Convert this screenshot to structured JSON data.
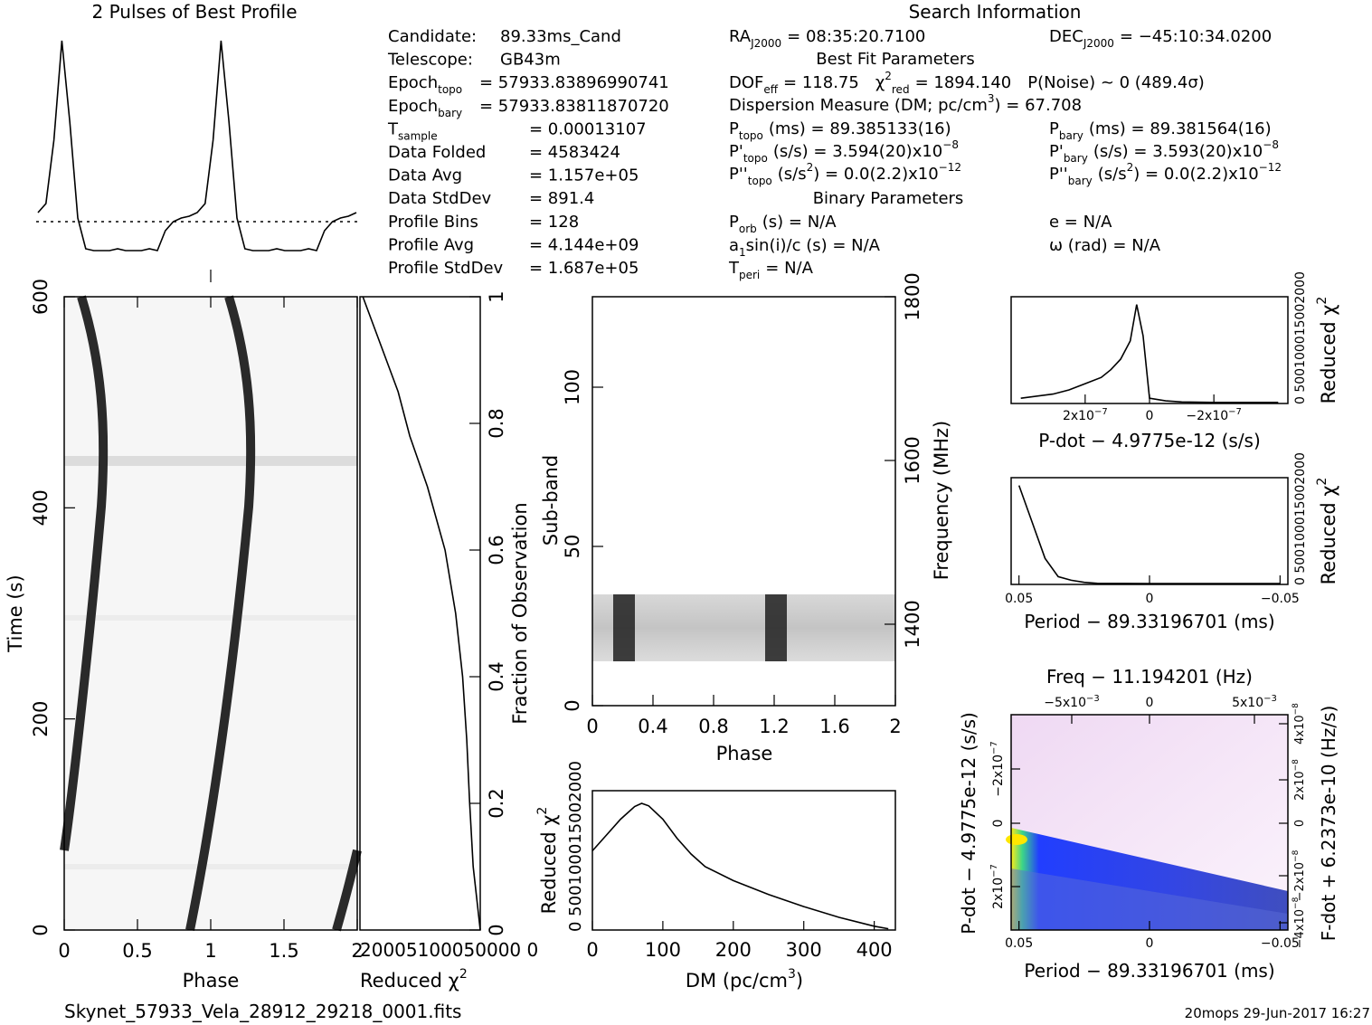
{
  "title_profile": "2 Pulses of Best Profile",
  "title_search": "Search Information",
  "info_left": [
    {
      "label": "Candidate:",
      "value": "89.33ms_Cand"
    },
    {
      "label": "Telescope:",
      "value": "GB43m"
    },
    {
      "label": "Epoch",
      "sub": "topo",
      "value": "= 57933.83896990741"
    },
    {
      "label": "Epoch",
      "sub": "bary",
      "value": "= 57933.83811870720"
    },
    {
      "label": "T",
      "sub": "sample",
      "value": "=   0.00013107"
    },
    {
      "label": "Data Folded",
      "value": "=   4583424"
    },
    {
      "label": "Data Avg",
      "value": "=   1.157e+05"
    },
    {
      "label": "Data StdDev",
      "value": "=   891.4"
    },
    {
      "label": "Profile Bins",
      "value": "=   128"
    },
    {
      "label": "Profile Avg",
      "value": "=   4.144e+09"
    },
    {
      "label": "Profile StdDev",
      "value": "=   1.687e+05"
    }
  ],
  "info_mid": {
    "ra_label": "RA",
    "ra_sub": "J2000",
    "ra_value": "= 08:35:20.7100",
    "dec_label": "DEC",
    "dec_sub": "J2000",
    "dec_value": "= −45:10:34.0200",
    "best_fit_header": "Best Fit Parameters",
    "dof_label": "DOF",
    "dof_sub": "eff",
    "dof_value": "= 118.75",
    "chi_label": "χ",
    "chi_sup": "2",
    "chi_sub": "red",
    "chi_value": "= 1894.140",
    "pnoise": "P(Noise) ~ 0    (489.4σ)",
    "dm_text": "Dispersion Measure (DM; pc/cm",
    "dm_sup": "3",
    "dm_value": ") = 67.708",
    "ptopo_label": "P",
    "ptopo_sub": "topo",
    "ptopo_value": "(ms) =  89.385133(16)",
    "pbary_label": "P",
    "pbary_sub": "bary",
    "pbary_value": "(ms) =  89.381564(16)",
    "pdtopo_label": "P'",
    "pdtopo_sub": "topo",
    "pdtopo_value": "(s/s) =  3.594(20)x10",
    "pdtopo_exp": "−8",
    "pdbary_label": "P'",
    "pdbary_sub": "bary",
    "pdbary_value": "(s/s) =  3.593(20)x10",
    "pdbary_exp": "−8",
    "pddtopo_label": "P''",
    "pddtopo_sub": "topo",
    "pddtopo_value": "(s/s",
    "pddtopo_rest": ") = 0.0(2.2)x10",
    "pddtopo_exp": "−12",
    "pddbary_label": "P''",
    "pddbary_sub": "bary",
    "pddbary_value": "(s/s",
    "pddbary_rest": ") = 0.0(2.2)x10",
    "pddbary_exp": "−12",
    "binary_header": "Binary Parameters",
    "porb": "(s) = N/A",
    "porb_label": "P",
    "porb_sub": "orb",
    "asini_label": "a",
    "asini_sub": "1",
    "asini_value": "sin(i)/c (s) = N/A",
    "tperi_label": "T",
    "tperi_sub": "peri",
    "tperi_value": "= N/A",
    "e_value": "e = N/A",
    "omega_value": "ω (rad) = N/A"
  },
  "time_phase": {
    "ylabel": "Time (s)",
    "xlabel": "Phase",
    "yticks": [
      "0",
      "200",
      "400",
      "600"
    ],
    "xticks": [
      "0",
      "0.5",
      "1",
      "1.5",
      "2"
    ]
  },
  "chi_time": {
    "xlabel": "Reduced χ",
    "xlabel_sup": "2",
    "xticks_label": "20005100050000 0",
    "right_label": "Fraction of Observation",
    "right_ticks": [
      "0",
      "0.2",
      "0.4",
      "0.6",
      "0.8",
      "1"
    ]
  },
  "subband": {
    "ylabel": "Sub-band",
    "xlabel": "Phase",
    "yticks": [
      "0",
      "50",
      "100"
    ],
    "xticks": [
      "0",
      "0.4",
      "0.8",
      "1.2",
      "1.6",
      "2"
    ],
    "right_label": "Frequency (MHz)",
    "right_ticks": [
      "1400",
      "1600",
      "1800"
    ]
  },
  "dm_curve": {
    "ylabel": "Reduced χ",
    "ylabel_sup": "2",
    "ytick_label": "0 500100015002000",
    "xlabel": "DM (pc/cm",
    "xlabel_sup": "3",
    "xlabel_end": ")",
    "xticks": [
      "0",
      "100",
      "200",
      "300",
      "400"
    ]
  },
  "pdot_curve": {
    "xlabel": "P-dot − 4.9775e-12 (s/s)",
    "xticks": [
      "2x10",
      "0",
      "−2x10"
    ],
    "xtick_exp": "−7",
    "right_label": "Reduced χ",
    "right_sup": "2",
    "right_ticks_label": "0 500100015002000"
  },
  "period_curve": {
    "xlabel": "Period − 89.33196701 (ms)",
    "xticks": [
      "0.05",
      "0",
      "−0.05"
    ],
    "right_label": "Reduced χ",
    "right_sup": "2",
    "right_ticks_label": "0 500100015002000"
  },
  "pp_plane": {
    "top_title": "Freq − 11.194201 (Hz)",
    "top_ticks": [
      "−5x10",
      "0",
      "5x10"
    ],
    "top_exp": "−3",
    "xlabel": "Period − 89.33196701 (ms)",
    "xticks": [
      "0.05",
      "0",
      "−0.05"
    ],
    "ylabel": "P-dot − 4.9775e-12 (s/s)",
    "yticks": [
      "−2x10",
      "0",
      "2x10"
    ],
    "ytick_exp": "−7",
    "right_label": "F-dot + 6.2373e-10 (Hz/s)",
    "right_ticks": [
      "4x10",
      "2x10",
      "0",
      "−2x10",
      "−4x10"
    ],
    "right_exp": "−8"
  },
  "footer": {
    "filename": "Skynet_57933_Vela_28912_29218_0001.fits",
    "stamp": "20mops 29-Jun-2017 16:27"
  },
  "colors": {
    "pp_low": "#f3e6f5",
    "pp_mid": "#1b3cff",
    "pp_peak": "#ffe600"
  },
  "chart_data": [
    {
      "type": "line",
      "name_ref": "profile",
      "x_phase": [
        0.0,
        0.05,
        0.1,
        0.15,
        0.2,
        0.25,
        0.3,
        0.35,
        0.4,
        0.45,
        0.5,
        0.55,
        0.6,
        0.65,
        0.7,
        0.75,
        0.8,
        0.85,
        0.9,
        0.95,
        1.0
      ],
      "y_norm": [
        0.05,
        0.1,
        0.45,
        1.0,
        0.55,
        0.02,
        -0.15,
        -0.16,
        -0.16,
        -0.16,
        -0.15,
        -0.16,
        -0.16,
        -0.16,
        -0.15,
        -0.16,
        -0.05,
        0.0,
        0.02,
        0.03,
        0.05
      ]
    },
    {
      "type": "line",
      "name_ref": "chi_vs_time",
      "fraction": [
        0.0,
        0.05,
        0.1,
        0.2,
        0.3,
        0.4,
        0.5,
        0.6,
        0.7,
        0.78,
        0.85,
        0.9,
        0.95,
        1.0
      ],
      "chi2": [
        0,
        60,
        120,
        180,
        230,
        300,
        420,
        600,
        900,
        1200,
        1400,
        1600,
        1800,
        2000
      ]
    },
    {
      "type": "line",
      "name_ref": "chi_vs_dm",
      "dm": [
        0,
        20,
        40,
        60,
        70,
        80,
        100,
        120,
        140,
        160,
        200,
        250,
        300,
        350,
        400,
        420
      ],
      "chi2": [
        1250,
        1500,
        1750,
        1950,
        2000,
        1960,
        1750,
        1450,
        1200,
        1000,
        780,
        560,
        370,
        200,
        60,
        20
      ],
      "xlim": [
        0,
        430
      ],
      "ylim": [
        0,
        2200
      ]
    },
    {
      "type": "line",
      "name_ref": "chi_vs_pdot",
      "pdot_rel": [
        4e-07,
        3e-07,
        2.5e-07,
        2e-07,
        1.5e-07,
        1.2e-07,
        9e-08,
        6e-08,
        4e-08,
        2e-08,
        0.0,
        -5e-08,
        -1e-07,
        -2e-07,
        -3e-07,
        -4e-07
      ],
      "chi2": [
        100,
        180,
        260,
        380,
        500,
        650,
        850,
        1200,
        1900,
        1300,
        100,
        50,
        30,
        20,
        20,
        20
      ]
    },
    {
      "type": "line",
      "name_ref": "chi_vs_period",
      "period_rel": [
        0.05,
        0.045,
        0.04,
        0.035,
        0.03,
        0.025,
        0.02,
        0.0,
        -0.02,
        -0.05
      ],
      "chi2": [
        1900,
        1200,
        500,
        150,
        80,
        40,
        20,
        15,
        15,
        15
      ]
    }
  ]
}
